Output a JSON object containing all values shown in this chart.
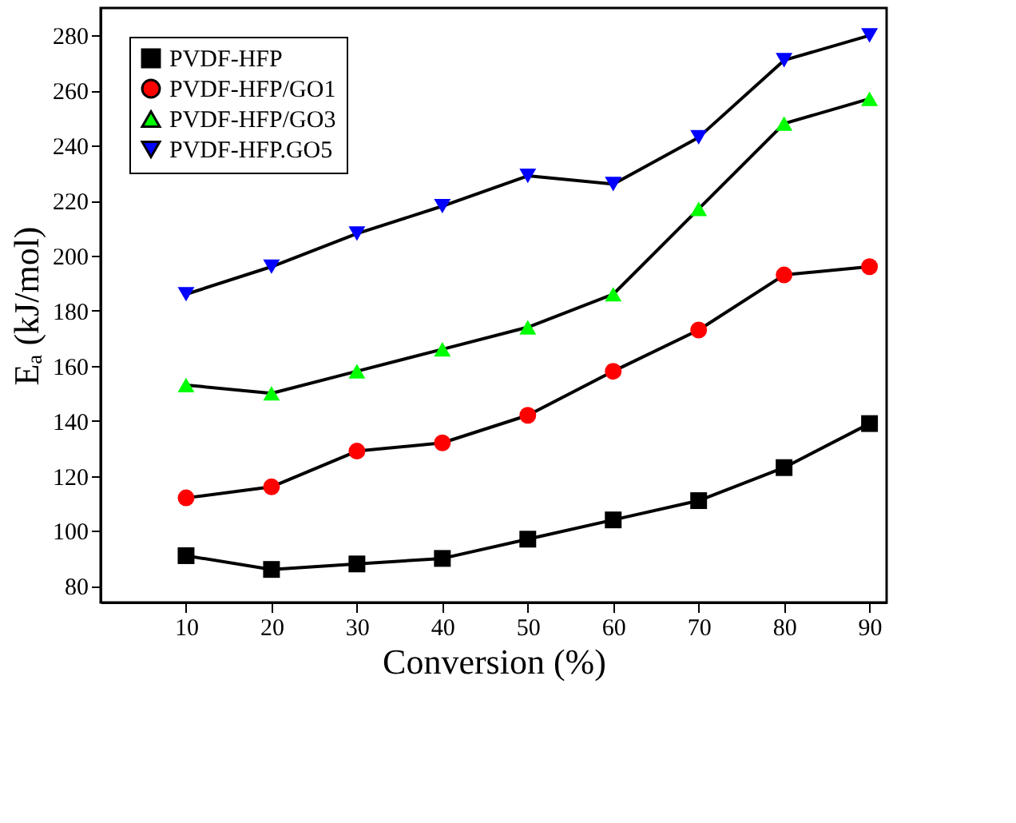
{
  "chart_data": {
    "type": "line",
    "xlabel": "Conversion (%)",
    "ylabel": "Eₐ (kJ/mol)",
    "x": [
      10,
      20,
      30,
      40,
      50,
      60,
      70,
      80,
      90
    ],
    "xlim": [
      0,
      92
    ],
    "xticks": [
      10,
      20,
      30,
      40,
      50,
      60,
      70,
      80,
      90
    ],
    "ylim": [
      74,
      290
    ],
    "yticks": [
      80,
      100,
      120,
      140,
      160,
      180,
      200,
      220,
      240,
      260,
      280
    ],
    "grid": false,
    "legend": "top left",
    "line_style": "solid",
    "series": [
      {
        "name": "PVDF-HFP",
        "color": "#000000",
        "marker": "square",
        "values": [
          91,
          86,
          88,
          90,
          97,
          104,
          111,
          123,
          139
        ]
      },
      {
        "name": "PVDF-HFP/GO1",
        "color": "#ff0000",
        "marker": "circle",
        "values": [
          112,
          116,
          129,
          132,
          142,
          158,
          173,
          193,
          196
        ]
      },
      {
        "name": "PVDF-HFP/GO3",
        "color": "#00ff00",
        "marker": "triangle",
        "values": [
          153,
          150,
          158,
          166,
          174,
          186,
          217,
          248,
          257
        ]
      },
      {
        "name": "PVDF-HFP.GO5",
        "color": "#0000ff",
        "marker": "triangle-down",
        "values": [
          186,
          196,
          208,
          218,
          229,
          226,
          243,
          271,
          280
        ]
      }
    ]
  }
}
